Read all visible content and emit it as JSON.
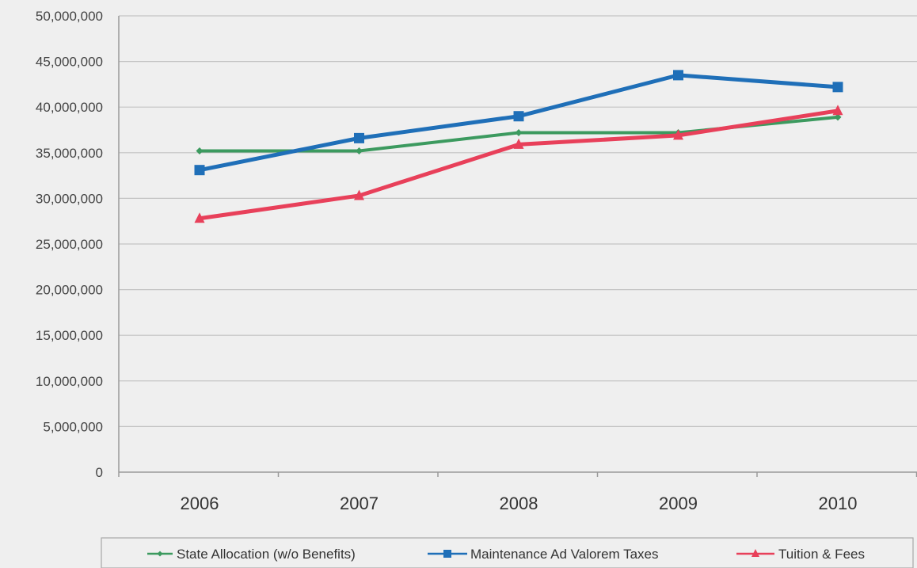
{
  "chart_data": {
    "type": "line",
    "categories": [
      "2006",
      "2007",
      "2008",
      "2009",
      "2010"
    ],
    "series": [
      {
        "name": "State Allocation (w/o Benefits)",
        "color": "#3c9a5f",
        "marker": "diamond",
        "values": [
          35200000,
          35200000,
          37200000,
          37200000,
          38900000
        ]
      },
      {
        "name": "Maintenance Ad Valorem Taxes",
        "color": "#1f6fb8",
        "marker": "square",
        "values": [
          33100000,
          36600000,
          39000000,
          43500000,
          42200000
        ]
      },
      {
        "name": "Tuition & Fees",
        "color": "#e8405a",
        "marker": "triangle",
        "values": [
          27800000,
          30300000,
          35900000,
          36900000,
          39600000
        ]
      }
    ],
    "yticks": [
      "0",
      "5,000,000",
      "10,000,000",
      "15,000,000",
      "20,000,000",
      "25,000,000",
      "30,000,000",
      "35,000,000",
      "40,000,000",
      "45,000,000",
      "50,000,000"
    ],
    "ylim": [
      0,
      50000000
    ],
    "grid": true,
    "legend": "bottom"
  }
}
